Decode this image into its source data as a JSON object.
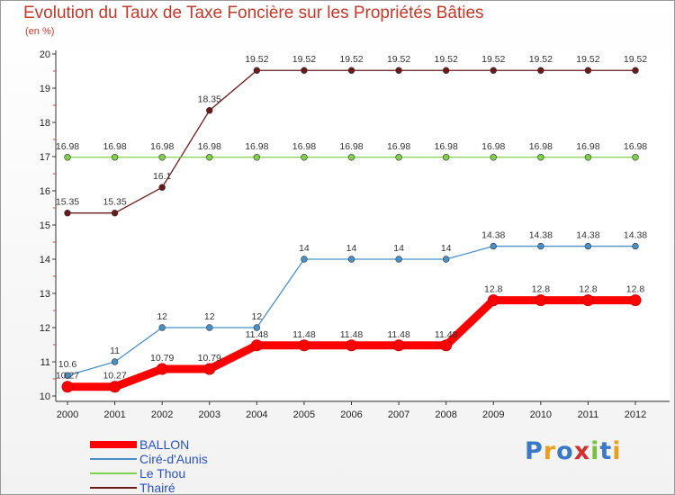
{
  "chart_data": {
    "type": "line",
    "title": "Evolution du Taux de Taxe Foncière sur les Propriétés Bâties",
    "subtitle": "(en %)",
    "xlabel": "",
    "ylabel": "",
    "x": [
      "2000",
      "2001",
      "2002",
      "2003",
      "2004",
      "2005",
      "2006",
      "2007",
      "2008",
      "2009",
      "2010",
      "2011",
      "2012"
    ],
    "ylim": [
      10,
      20
    ],
    "yticks": [
      "10",
      "11",
      "12",
      "13",
      "14",
      "15",
      "16",
      "17",
      "18",
      "19",
      "20"
    ],
    "series": [
      {
        "name": "BALLON",
        "color": "#ff0000",
        "values": [
          10.27,
          10.27,
          10.79,
          10.79,
          11.48,
          11.48,
          11.48,
          11.48,
          11.48,
          12.8,
          12.8,
          12.8,
          12.8
        ],
        "labels": [
          "10.27",
          "10.27",
          "10.79",
          "10.79",
          "11.48",
          "11.48",
          "11.48",
          "11.48",
          "11.48",
          "12.8",
          "12.8",
          "12.8",
          "12.8"
        ]
      },
      {
        "name": "Ciré-d'Aunis",
        "color": "#4a90c8",
        "values": [
          10.6,
          11,
          12,
          12,
          12,
          14,
          14,
          14,
          14,
          14.38,
          14.38,
          14.38,
          14.38
        ],
        "labels": [
          "10.6",
          "11",
          "12",
          "12",
          "12",
          "14",
          "14",
          "14",
          "14",
          "14.38",
          "14.38",
          "14.38",
          "14.38"
        ]
      },
      {
        "name": "Le Thou",
        "color": "#7ed14a",
        "values": [
          16.98,
          16.98,
          16.98,
          16.98,
          16.98,
          16.98,
          16.98,
          16.98,
          16.98,
          16.98,
          16.98,
          16.98,
          16.98
        ],
        "labels": [
          "16.98",
          "16.98",
          "16.98",
          "16.98",
          "16.98",
          "16.98",
          "16.98",
          "16.98",
          "16.98",
          "16.98",
          "16.98",
          "16.98",
          "16.98"
        ]
      },
      {
        "name": "Thairé",
        "color": "#6b1a1a",
        "values": [
          15.35,
          15.35,
          16.1,
          18.35,
          19.52,
          19.52,
          19.52,
          19.52,
          19.52,
          19.52,
          19.52,
          19.52,
          19.52
        ],
        "labels": [
          "15.35",
          "15.35",
          "16.1",
          "18.35",
          "19.52",
          "19.52",
          "19.52",
          "19.52",
          "19.52",
          "19.52",
          "19.52",
          "19.52",
          "19.52"
        ]
      }
    ],
    "legend_position": "bottom-left"
  },
  "logo": {
    "letters": [
      "P",
      "r",
      "o",
      "x",
      "i",
      "t",
      "i"
    ],
    "colors": [
      "#3a78c8",
      "#e8a020",
      "#3a78c8",
      "#d03030",
      "#7ac040",
      "#3a78c8",
      "#e8a020"
    ]
  }
}
